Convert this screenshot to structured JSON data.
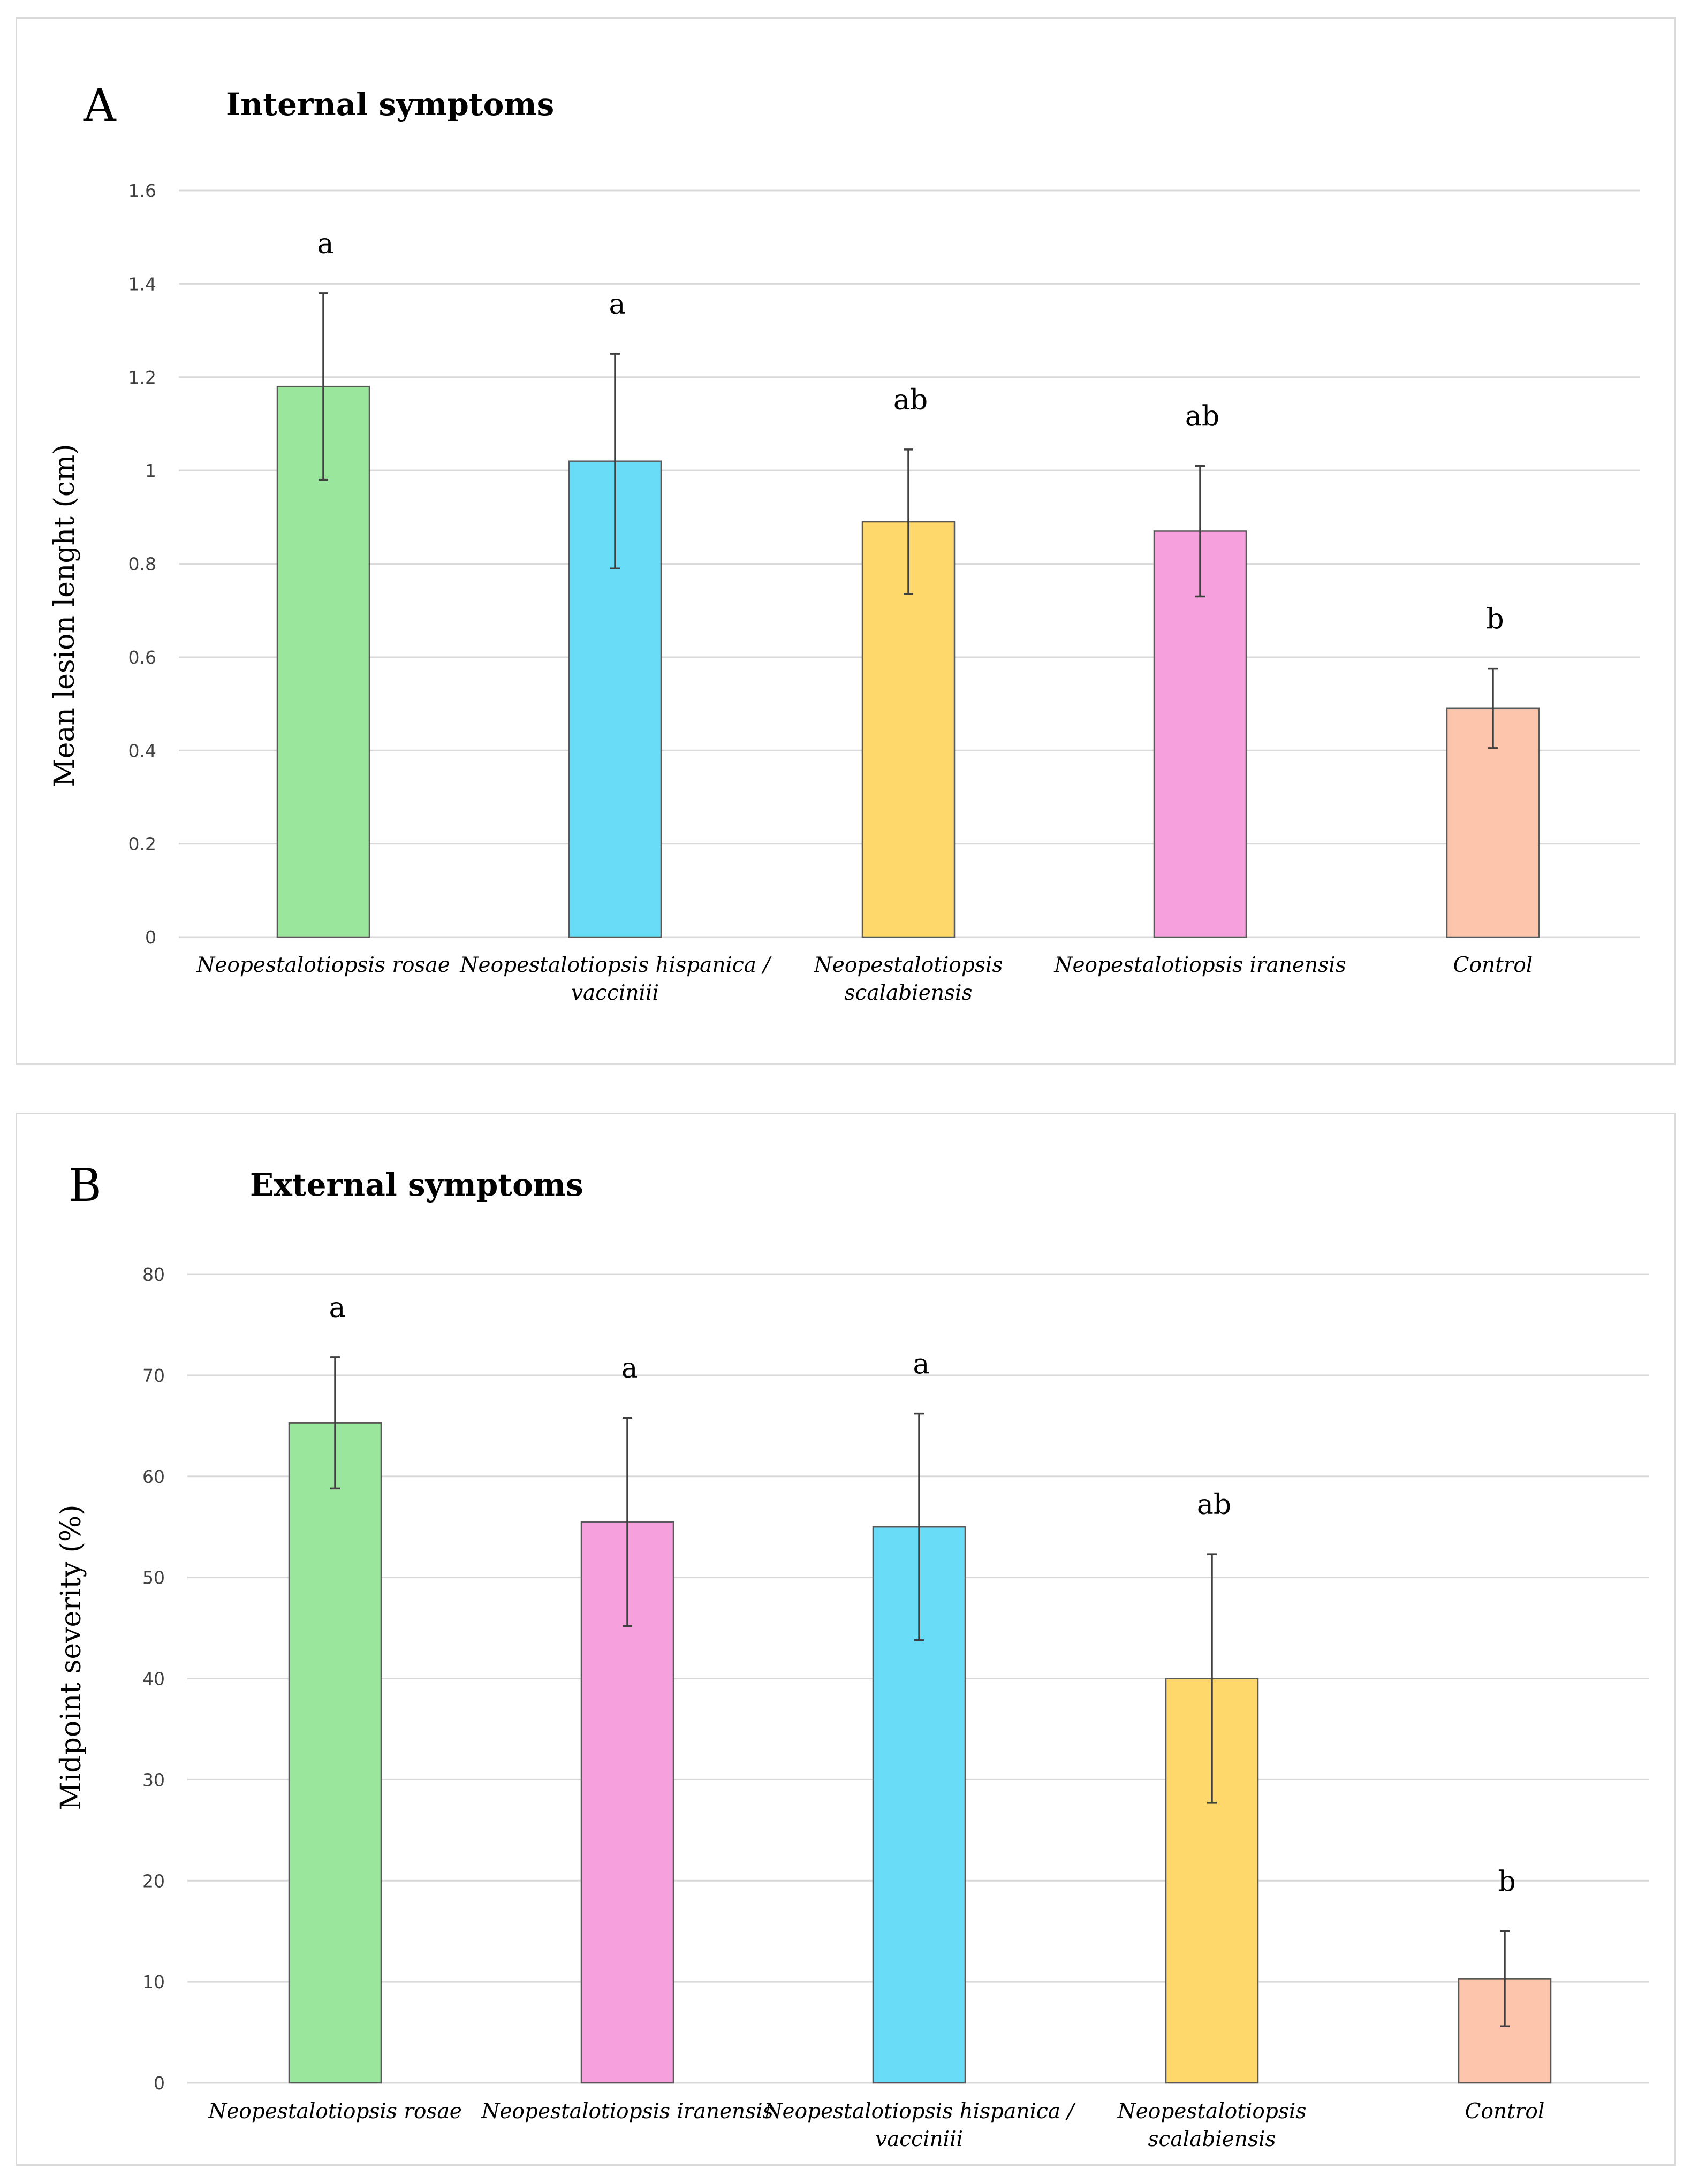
{
  "chart_data": [
    {
      "type": "bar",
      "panel": "A",
      "title": "Internal symptoms",
      "xlabel": "",
      "ylabel": "Mean lesion lenght (cm)",
      "ylim": [
        0,
        1.6
      ],
      "yticks": [
        "0",
        "0.2",
        "0.4",
        "0.6",
        "0.8",
        "1",
        "1.2",
        "1.4",
        "1.6"
      ],
      "ytick_values": [
        0,
        0.2,
        0.4,
        0.6,
        0.8,
        1,
        1.2,
        1.4,
        1.6
      ],
      "grid": true,
      "categories": [
        [
          "Neopestalotiopsis rosae"
        ],
        [
          "Neopestalotiopsis hispanica /",
          "vacciniii"
        ],
        [
          "Neopestalotiopsis",
          "scalabiensis"
        ],
        [
          "Neopestalotiopsis iranensis"
        ],
        [
          "Control"
        ]
      ],
      "values": [
        1.18,
        1.02,
        0.89,
        0.87,
        0.49
      ],
      "errors": [
        0.2,
        0.23,
        0.155,
        0.14,
        0.085
      ],
      "significance": [
        "a",
        "a",
        "ab",
        "ab",
        "b"
      ],
      "colors": [
        "#9be69d",
        "#69dcf7",
        "#ffd86c",
        "#f7a0de",
        "#fdc5ac"
      ]
    },
    {
      "type": "bar",
      "panel": "B",
      "title": "External symptoms",
      "xlabel": "",
      "ylabel": "Midpoint severity (%)",
      "ylim": [
        0,
        80
      ],
      "yticks": [
        "0",
        "10",
        "20",
        "30",
        "40",
        "50",
        "60",
        "70",
        "80"
      ],
      "ytick_values": [
        0,
        10,
        20,
        30,
        40,
        50,
        60,
        70,
        80
      ],
      "grid": true,
      "categories": [
        [
          "Neopestalotiopsis rosae"
        ],
        [
          "Neopestalotiopsis iranensis"
        ],
        [
          "Neopestalotiopsis hispanica /",
          "vacciniii"
        ],
        [
          "Neopestalotiopsis",
          "scalabiensis"
        ],
        [
          "Control"
        ]
      ],
      "values": [
        65.3,
        55.5,
        55.0,
        40.0,
        10.3
      ],
      "errors": [
        6.5,
        10.3,
        11.2,
        12.3,
        4.7
      ],
      "significance": [
        "a",
        "a",
        "a",
        "ab",
        "b"
      ],
      "colors": [
        "#9be69d",
        "#f7a0de",
        "#69dcf7",
        "#ffd86c",
        "#fdc5ac"
      ]
    }
  ]
}
